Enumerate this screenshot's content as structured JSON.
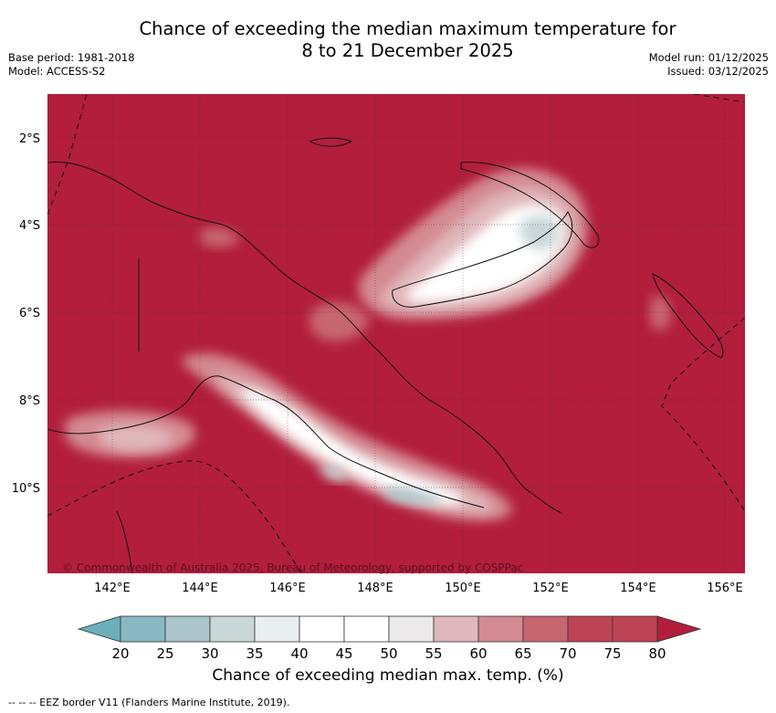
{
  "title_line1": "Chance of exceeding the median maximum temperature for",
  "title_line2": "8 to 21 December 2025",
  "base_period": "Base period: 1981-2018",
  "model": "Model: ACCESS-S2",
  "model_run": "Model run: 01/12/2025",
  "issued": "Issued: 03/12/2025",
  "lat_labels": [
    "2°S",
    "4°S",
    "6°S",
    "8°S",
    "10°S"
  ],
  "lon_labels": [
    "142°E",
    "144°E",
    "146°E",
    "148°E",
    "150°E",
    "152°E",
    "154°E",
    "156°E"
  ],
  "copyright": "© Commonwealth of Australia 2025, Bureau of Meteorology, supported by COSPPac",
  "colorbar": {
    "ticks": [
      "20",
      "25",
      "30",
      "35",
      "40",
      "45",
      "50",
      "55",
      "60",
      "65",
      "70",
      "75",
      "80"
    ],
    "colors": [
      "#6aafbb",
      "#8ab8c2",
      "#aac5cb",
      "#c9d7d9",
      "#e9eff0",
      "#ffffff",
      "#ffffff",
      "#ece9ea",
      "#e0b8bc",
      "#d48a92",
      "#c86670",
      "#bd4454",
      "#b21e3c"
    ],
    "label": "Chance of exceeding median max. temp. (%)"
  },
  "eez_note": "--  --  -- EEZ border V11 (Flanders Marine Institute, 2019).",
  "background_color": "#b21e3c"
}
